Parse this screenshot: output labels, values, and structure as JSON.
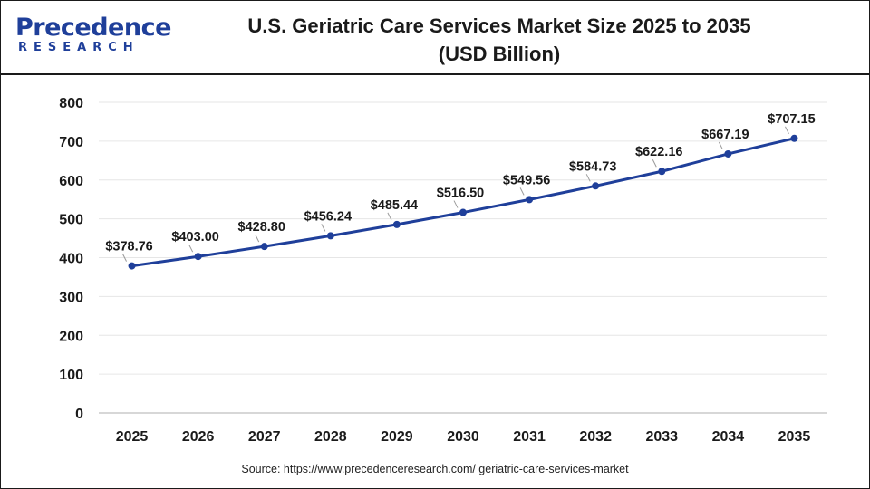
{
  "brand": {
    "name_main": "Precedence",
    "name_sub": "RESEARCH"
  },
  "header": {
    "title_line1": "U.S. Geriatric Care Services Market Size 2025 to 2035",
    "title_line2": "(USD Billion)"
  },
  "source": "Source: https://www.precedenceresearch.com/ geriatric-care-services-market",
  "colors": {
    "line": "#1f3f9a",
    "marker": "#1f3f9a",
    "grid": "#e6e6e6",
    "text": "#1a1a1a"
  },
  "chart_data": {
    "type": "line",
    "title": "U.S. Geriatric Care Services Market Size 2025 to 2035 (USD Billion)",
    "categories": [
      "2025",
      "2026",
      "2027",
      "2028",
      "2029",
      "2030",
      "2031",
      "2032",
      "2033",
      "2034",
      "2035"
    ],
    "series": [
      {
        "values": [
          378.76,
          403.0,
          428.8,
          456.24,
          485.44,
          516.5,
          549.56,
          584.73,
          622.16,
          667.19,
          707.15
        ]
      }
    ],
    "data_labels": [
      "$378.76",
      "$403.00",
      "$428.80",
      "$456.24",
      "$485.44",
      "$516.50",
      "$549.56",
      "$584.73",
      "$622.16",
      "$667.19",
      "$707.15"
    ],
    "ylim": [
      0,
      800
    ],
    "yticks": [
      0,
      100,
      200,
      300,
      400,
      500,
      600,
      700,
      800
    ],
    "grid": true,
    "legend": false
  }
}
